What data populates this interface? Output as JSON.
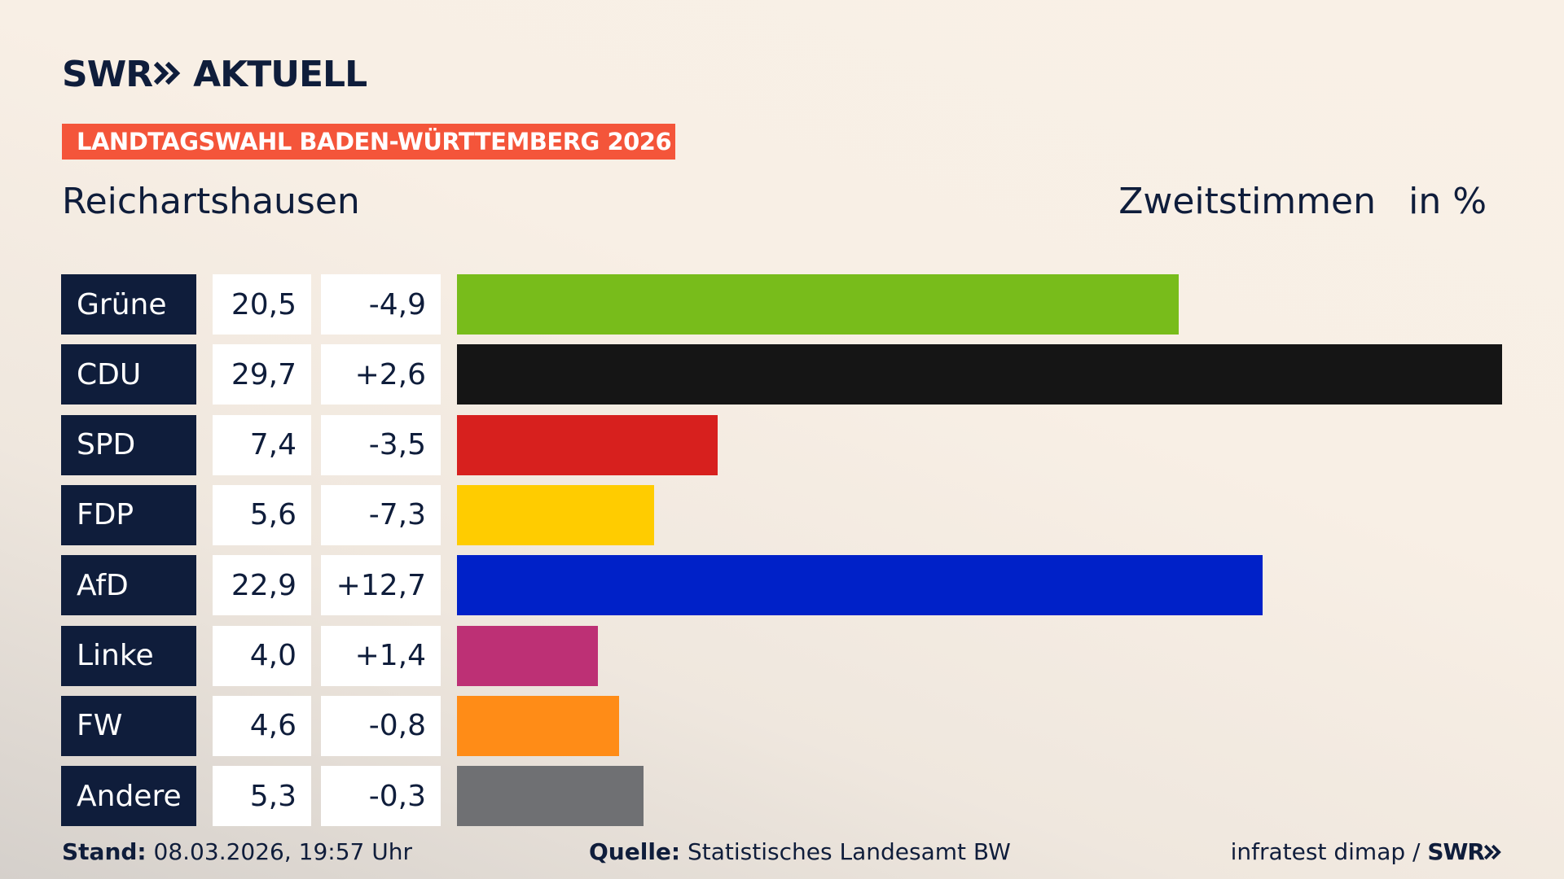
{
  "header": {
    "logo": "SWR",
    "brand": "AKTUELL",
    "banner": "LANDTAGSWAHL BADEN-WÜRTTEMBERG 2026"
  },
  "chart_data": {
    "type": "bar",
    "title": "Reichartshausen",
    "measure": "Zweitstimmen",
    "unit": "in %",
    "categories": [
      "Grüne",
      "CDU",
      "SPD",
      "FDP",
      "AfD",
      "Linke",
      "FW",
      "Andere"
    ],
    "values": [
      20.5,
      29.7,
      7.4,
      5.6,
      22.9,
      4.0,
      4.6,
      5.3
    ],
    "value_labels": [
      "20,5",
      "29,7",
      "7,4",
      "5,6",
      "22,9",
      "4,0",
      "4,6",
      "5,3"
    ],
    "changes": [
      -4.9,
      2.6,
      -3.5,
      -7.3,
      12.7,
      1.4,
      -0.8,
      -0.3
    ],
    "change_labels": [
      "-4,9",
      "+2,6",
      "-3,5",
      "-7,3",
      "+12,7",
      "+1,4",
      "-0,8",
      "-0,3"
    ],
    "colors": [
      "#78bc1b",
      "#151515",
      "#d7201e",
      "#ffcc00",
      "#0021c8",
      "#bd3075",
      "#ff8c17",
      "#6f7073"
    ],
    "xlim": [
      0,
      29.7
    ]
  },
  "footer": {
    "date_label": "Stand:",
    "date": "08.03.2026, 19:57 Uhr",
    "source_label": "Quelle:",
    "source": "Statistisches Landesamt BW",
    "credit": "infratest dimap /",
    "credit_logo": "SWR"
  }
}
